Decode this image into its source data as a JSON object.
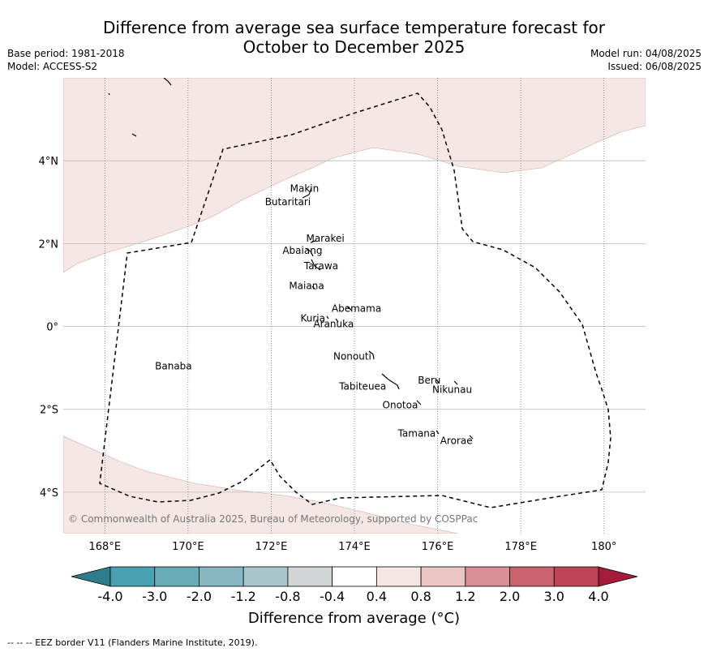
{
  "header": {
    "title_line1": "Difference from average sea surface temperature forecast for",
    "title_line2": "October to December 2025",
    "base_period": "Base period: 1981-2018",
    "model": "Model: ACCESS-S2",
    "model_run": "Model run: 04/08/2025",
    "issued": "Issued: 06/08/2025"
  },
  "map": {
    "x_ticks": [
      "168°E",
      "170°E",
      "172°E",
      "174°E",
      "176°E",
      "178°E",
      "180°"
    ],
    "y_ticks": [
      "4°N",
      "2°N",
      "0°",
      "2°S",
      "4°S"
    ],
    "copyright": "© Commonwealth of Australia 2025, Bureau of Meteorology, supported by COSPPac",
    "fill_color_north": "#f5e7e6",
    "fill_color_south": "#f5e7e6",
    "eez_color": "#000000",
    "place_labels": [
      {
        "name": "Makin",
        "lon": 172.8,
        "lat": 3.25
      },
      {
        "name": "Butaritari",
        "lon": 172.4,
        "lat": 2.93
      },
      {
        "name": "Marakei",
        "lon": 173.3,
        "lat": 2.05
      },
      {
        "name": "Abaiang",
        "lon": 172.75,
        "lat": 1.75
      },
      {
        "name": "Tarawa",
        "lon": 173.2,
        "lat": 1.38
      },
      {
        "name": "Maiana",
        "lon": 172.85,
        "lat": 0.9
      },
      {
        "name": "Abemama",
        "lon": 174.05,
        "lat": 0.35
      },
      {
        "name": "Kuria",
        "lon": 173.0,
        "lat": 0.12
      },
      {
        "name": "Aranuka",
        "lon": 173.5,
        "lat": -0.02
      },
      {
        "name": "Nonouti",
        "lon": 173.95,
        "lat": -0.8
      },
      {
        "name": "Banaba",
        "lon": 169.65,
        "lat": -1.04
      },
      {
        "name": "Beru",
        "lon": 175.8,
        "lat": -1.38
      },
      {
        "name": "Nikunau",
        "lon": 176.35,
        "lat": -1.6
      },
      {
        "name": "Tabiteuea",
        "lon": 174.2,
        "lat": -1.53
      },
      {
        "name": "Onotoa",
        "lon": 175.1,
        "lat": -1.98
      },
      {
        "name": "Tamana",
        "lon": 175.5,
        "lat": -2.66
      },
      {
        "name": "Arorae",
        "lon": 176.45,
        "lat": -2.84
      }
    ]
  },
  "colorbar": {
    "tick_labels": [
      "-4.0",
      "-3.0",
      "-2.0",
      "-1.2",
      "-0.8",
      "-0.4",
      "0.4",
      "0.8",
      "1.2",
      "2.0",
      "3.0",
      "4.0"
    ],
    "colors": [
      "#2e7d8f",
      "#4aa2b1",
      "#6aadb9",
      "#89b7c1",
      "#a9c7cb",
      "#d2d5d6",
      "#ffffff",
      "#f5e7e6",
      "#ebc7c4",
      "#d88f95",
      "#c9646f",
      "#bf4556",
      "#a51c3a"
    ],
    "title": "Difference from average (",
    "unit": "°C",
    "title_end": ")"
  },
  "footnote": "--  --  -- EEZ border V11 (Flanders Marine Institute, 2019)."
}
